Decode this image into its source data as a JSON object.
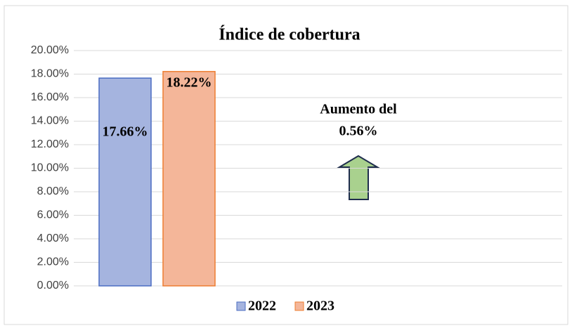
{
  "chart_data": {
    "type": "bar",
    "title": "Índice de cobertura",
    "categories": [
      null
    ],
    "series": [
      {
        "name": "2022",
        "color": "#a5b4df",
        "values": [
          17.66
        ],
        "value_labels": [
          "17.66%"
        ]
      },
      {
        "name": "2023",
        "color": "#f4b699",
        "values": [
          18.22
        ],
        "value_labels": [
          "18.22%"
        ]
      }
    ],
    "ylim": [
      0,
      20
    ],
    "yticks": [
      {
        "value": 0,
        "label": "0.00%"
      },
      {
        "value": 2,
        "label": "2.00%"
      },
      {
        "value": 4,
        "label": "4.00%"
      },
      {
        "value": 6,
        "label": "6.00%"
      },
      {
        "value": 8,
        "label": "8.00%"
      },
      {
        "value": 10,
        "label": "10.00%"
      },
      {
        "value": 12,
        "label": "12.00%"
      },
      {
        "value": 14,
        "label": "14.00%"
      },
      {
        "value": 16,
        "label": "16.00%"
      },
      {
        "value": 18,
        "label": "18.00%"
      },
      {
        "value": 20,
        "label": "20.00%"
      }
    ],
    "grid": true,
    "legend": "bottom",
    "annotations": [
      "Aumento del",
      "0.56%"
    ]
  }
}
